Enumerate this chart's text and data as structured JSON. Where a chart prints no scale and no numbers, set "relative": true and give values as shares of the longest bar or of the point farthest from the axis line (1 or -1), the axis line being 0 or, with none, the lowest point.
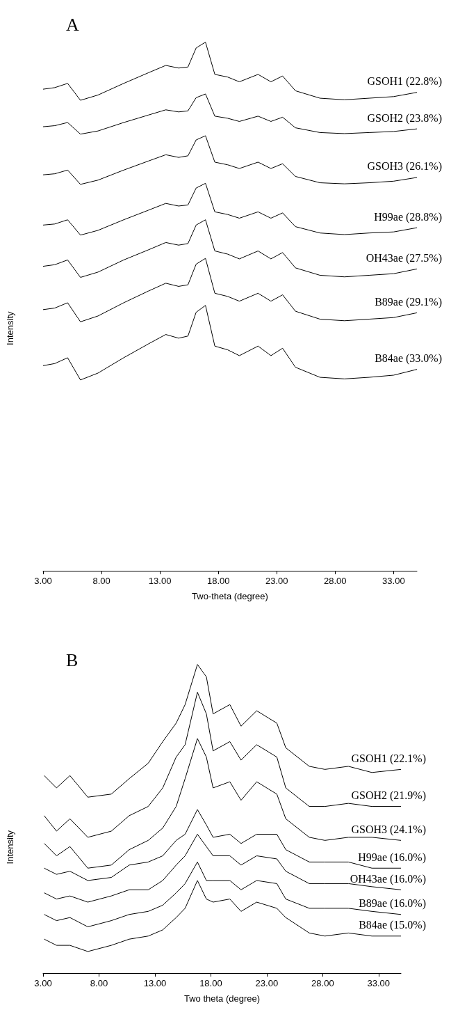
{
  "chart_data": [
    {
      "type": "line",
      "title": "A",
      "xlabel": "Two-theta (degree)",
      "ylabel": "Intensity",
      "relative": true,
      "marker": "none",
      "tick_labels": "x",
      "xlim": [
        3,
        35
      ],
      "xticks": [
        {
          "value": 3,
          "label": "3.00"
        },
        {
          "value": 8,
          "label": "8.00"
        },
        {
          "value": 13,
          "label": "13.00"
        },
        {
          "value": 18,
          "label": "18.00"
        },
        {
          "value": 23,
          "label": "23.00"
        },
        {
          "value": 28,
          "label": "28.00"
        },
        {
          "value": 33,
          "label": "33.00"
        }
      ],
      "x": [
        3,
        4,
        5.1,
        6.2,
        7.7,
        9.9,
        12,
        13.5,
        14.6,
        15.4,
        16.1,
        16.9,
        17.7,
        18.8,
        19.8,
        21.4,
        22.5,
        23.5,
        24.6,
        26.7,
        28.8,
        30.9,
        33,
        35
      ],
      "series": [
        {
          "name": "GSOH1 (22.8%)",
          "color": "#000000",
          "values": [
            0.911,
            0.914,
            0.922,
            0.89,
            0.9,
            0.922,
            0.942,
            0.956,
            0.951,
            0.953,
            0.989,
            1.0,
            0.939,
            0.934,
            0.925,
            0.939,
            0.925,
            0.936,
            0.908,
            0.894,
            0.891,
            0.894,
            0.897,
            0.905
          ]
        },
        {
          "name": "GSOH2 (23.8%)",
          "color": "#000000",
          "values": [
            0.84,
            0.842,
            0.848,
            0.826,
            0.832,
            0.848,
            0.862,
            0.872,
            0.868,
            0.87,
            0.895,
            0.902,
            0.86,
            0.856,
            0.85,
            0.86,
            0.85,
            0.858,
            0.838,
            0.829,
            0.827,
            0.829,
            0.831,
            0.836
          ]
        },
        {
          "name": "GSOH3 (26.1%)",
          "color": "#000000",
          "values": [
            0.749,
            0.751,
            0.758,
            0.731,
            0.739,
            0.758,
            0.775,
            0.787,
            0.782,
            0.785,
            0.815,
            0.823,
            0.773,
            0.768,
            0.761,
            0.773,
            0.761,
            0.77,
            0.746,
            0.734,
            0.732,
            0.734,
            0.737,
            0.744
          ]
        },
        {
          "name": "H99ae (28.8%)",
          "color": "#000000",
          "values": [
            0.654,
            0.656,
            0.664,
            0.635,
            0.644,
            0.664,
            0.682,
            0.695,
            0.69,
            0.692,
            0.724,
            0.733,
            0.679,
            0.674,
            0.667,
            0.679,
            0.667,
            0.677,
            0.651,
            0.639,
            0.636,
            0.639,
            0.641,
            0.649
          ]
        },
        {
          "name": "OH43ae (27.5%)",
          "color": "#000000",
          "values": [
            0.576,
            0.579,
            0.588,
            0.555,
            0.565,
            0.588,
            0.607,
            0.621,
            0.616,
            0.619,
            0.654,
            0.664,
            0.605,
            0.599,
            0.59,
            0.605,
            0.59,
            0.602,
            0.573,
            0.559,
            0.556,
            0.559,
            0.562,
            0.571
          ]
        },
        {
          "name": "B89ae (29.1%)",
          "color": "#000000",
          "values": [
            0.494,
            0.497,
            0.507,
            0.471,
            0.482,
            0.507,
            0.529,
            0.544,
            0.538,
            0.541,
            0.58,
            0.591,
            0.525,
            0.519,
            0.51,
            0.525,
            0.51,
            0.522,
            0.491,
            0.476,
            0.473,
            0.476,
            0.479,
            0.488
          ]
        },
        {
          "name": "B84ae (33.0%)",
          "color": "#000000",
          "values": [
            0.388,
            0.392,
            0.403,
            0.361,
            0.374,
            0.403,
            0.429,
            0.447,
            0.44,
            0.444,
            0.489,
            0.502,
            0.425,
            0.418,
            0.407,
            0.425,
            0.407,
            0.421,
            0.385,
            0.366,
            0.363,
            0.366,
            0.37,
            0.381
          ]
        }
      ]
    },
    {
      "type": "line",
      "title": "B",
      "xlabel": "Two theta (degree)",
      "ylabel": "Intensity",
      "relative": true,
      "marker": "none",
      "tick_labels": "x",
      "xlim": [
        3,
        35
      ],
      "xticks": [
        {
          "value": 3,
          "label": "3.00"
        },
        {
          "value": 8,
          "label": "8.00"
        },
        {
          "value": 13,
          "label": "13.00"
        },
        {
          "value": 18,
          "label": "18.00"
        },
        {
          "value": 23,
          "label": "23.00"
        },
        {
          "value": 28,
          "label": "28.00"
        },
        {
          "value": 33,
          "label": "33.00"
        }
      ],
      "x": [
        3.1,
        4.2,
        5.4,
        7,
        9.1,
        10.7,
        12.4,
        13.7,
        14.9,
        15.7,
        16.8,
        17.6,
        18.2,
        19.7,
        20.7,
        22.1,
        23.9,
        24.7,
        26.8,
        28.2,
        30.3,
        32.4,
        35
      ],
      "series": [
        {
          "name": "GSOH1 (22.1%)",
          "color": "#000000",
          "values": [
            0.64,
            0.6,
            0.64,
            0.57,
            0.58,
            0.63,
            0.68,
            0.75,
            0.81,
            0.87,
            1.0,
            0.96,
            0.84,
            0.87,
            0.8,
            0.85,
            0.81,
            0.73,
            0.67,
            0.66,
            0.67,
            0.65,
            0.66
          ]
        },
        {
          "name": "GSOH2 (21.9%)",
          "color": "#000000",
          "values": [
            0.51,
            0.46,
            0.5,
            0.44,
            0.46,
            0.51,
            0.54,
            0.6,
            0.7,
            0.74,
            0.91,
            0.84,
            0.72,
            0.75,
            0.69,
            0.74,
            0.7,
            0.6,
            0.54,
            0.54,
            0.55,
            0.54,
            0.54
          ]
        },
        {
          "name": "GSOH3 (24.1%)",
          "color": "#000000",
          "values": [
            0.42,
            0.38,
            0.41,
            0.34,
            0.35,
            0.4,
            0.43,
            0.47,
            0.54,
            0.63,
            0.76,
            0.7,
            0.6,
            0.62,
            0.56,
            0.62,
            0.58,
            0.5,
            0.44,
            0.43,
            0.44,
            0.44,
            0.43
          ]
        },
        {
          "name": "H99ae (16.0%)",
          "color": "#000000",
          "values": [
            0.34,
            0.32,
            0.33,
            0.3,
            0.31,
            0.35,
            0.36,
            0.38,
            0.43,
            0.45,
            0.53,
            0.48,
            0.44,
            0.45,
            0.42,
            0.45,
            0.45,
            0.4,
            0.36,
            0.36,
            0.36,
            0.34,
            0.34
          ]
        },
        {
          "name": "OH43ae (16.0%)",
          "color": "#000000",
          "values": [
            0.26,
            0.24,
            0.25,
            0.23,
            0.25,
            0.27,
            0.27,
            0.3,
            0.35,
            0.38,
            0.45,
            0.41,
            0.38,
            0.38,
            0.35,
            0.38,
            0.37,
            0.33,
            0.29,
            0.29,
            0.29,
            0.28,
            0.27
          ]
        },
        {
          "name": "B89ae (16.0%)",
          "color": "#000000",
          "values": [
            0.19,
            0.17,
            0.18,
            0.15,
            0.17,
            0.19,
            0.2,
            0.22,
            0.26,
            0.29,
            0.36,
            0.3,
            0.3,
            0.3,
            0.27,
            0.3,
            0.29,
            0.24,
            0.21,
            0.21,
            0.21,
            0.2,
            0.19
          ]
        },
        {
          "name": "B84ae (15.0%)",
          "color": "#000000",
          "values": [
            0.11,
            0.09,
            0.09,
            0.07,
            0.09,
            0.11,
            0.12,
            0.14,
            0.18,
            0.21,
            0.3,
            0.24,
            0.23,
            0.24,
            0.2,
            0.23,
            0.21,
            0.18,
            0.13,
            0.12,
            0.13,
            0.12,
            0.12
          ]
        }
      ]
    }
  ]
}
